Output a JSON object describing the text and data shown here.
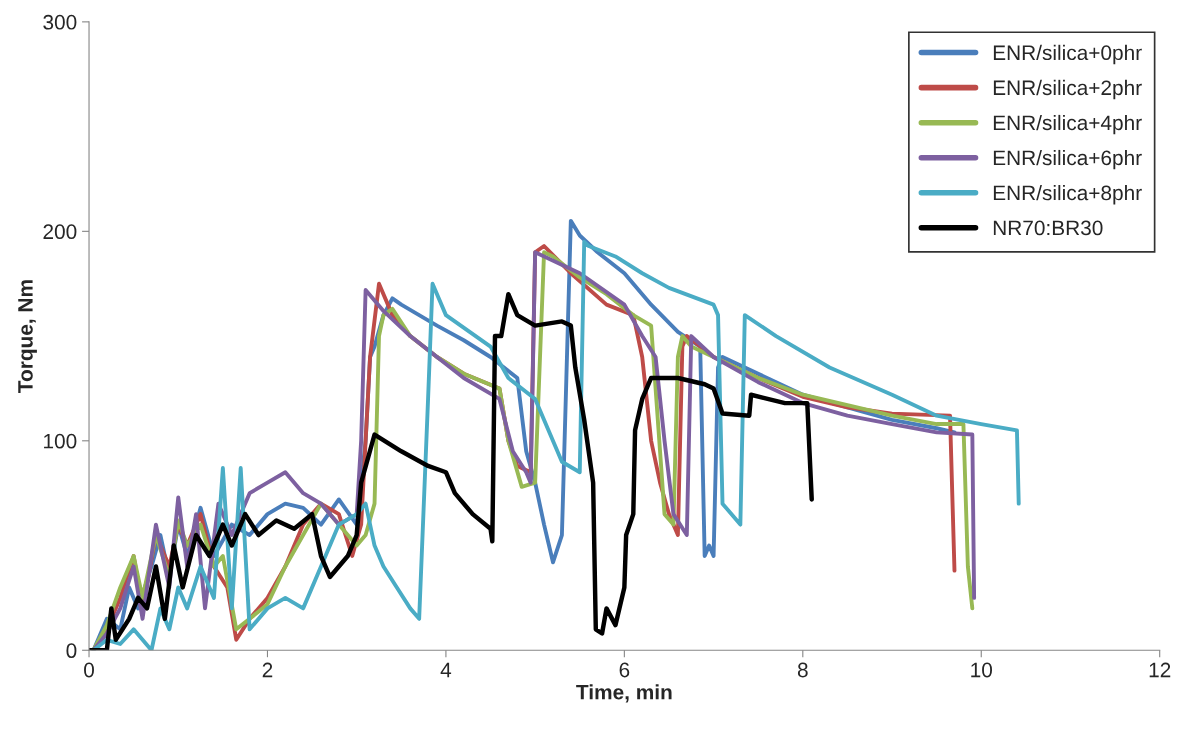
{
  "chart_data": {
    "type": "line",
    "xlabel": "Time, min",
    "ylabel": "Torque, Nm",
    "xlim": [
      0,
      12
    ],
    "ylim": [
      0,
      300
    ],
    "xticks": [
      0,
      2,
      4,
      6,
      8,
      10,
      12
    ],
    "yticks": [
      0,
      100,
      200,
      300
    ],
    "grid": false,
    "legend": "top right",
    "marker": "none",
    "line_style": "solid",
    "series": [
      {
        "name": "ENR/silica+0phr",
        "color": "#4a7ebb",
        "x": [
          0.05,
          0.2,
          0.35,
          0.45,
          0.55,
          0.7,
          0.8,
          0.9,
          1.0,
          1.1,
          1.25,
          1.4,
          1.6,
          1.8,
          2.0,
          2.2,
          2.4,
          2.6,
          2.8,
          3.0,
          3.1,
          3.15,
          3.2,
          3.3,
          3.4,
          3.5,
          3.7,
          3.9,
          4.2,
          4.5,
          4.8,
          4.9,
          5.0,
          5.1,
          5.2,
          5.3,
          5.35,
          5.4,
          5.5,
          5.7,
          6.0,
          6.3,
          6.6,
          6.85,
          6.9,
          6.95,
          7.0,
          7.05,
          7.1,
          7.5,
          8.0,
          8.5,
          9.0,
          9.5,
          9.7
        ],
        "values": [
          0,
          15,
          10,
          30,
          20,
          40,
          55,
          35,
          60,
          45,
          68,
          45,
          60,
          55,
          65,
          70,
          68,
          60,
          72,
          60,
          100,
          140,
          145,
          160,
          168,
          165,
          160,
          155,
          148,
          140,
          130,
          95,
          80,
          60,
          42,
          55,
          130,
          205,
          198,
          190,
          180,
          165,
          152,
          145,
          45,
          50,
          45,
          135,
          140,
          132,
          122,
          116,
          110,
          106,
          104
        ]
      },
      {
        "name": "ENR/silica+2phr",
        "color": "#be4b48",
        "x": [
          0.05,
          0.2,
          0.35,
          0.5,
          0.6,
          0.75,
          0.9,
          1.0,
          1.1,
          1.25,
          1.4,
          1.55,
          1.65,
          1.8,
          2.0,
          2.2,
          2.4,
          2.6,
          2.8,
          2.95,
          3.05,
          3.15,
          3.25,
          3.4,
          3.6,
          3.9,
          4.2,
          4.6,
          4.7,
          4.8,
          4.95,
          5.0,
          5.1,
          5.4,
          5.8,
          6.1,
          6.2,
          6.3,
          6.4,
          6.5,
          6.6,
          6.65,
          6.7,
          7.0,
          7.5,
          8.0,
          8.5,
          9.0,
          9.65,
          9.7
        ],
        "values": [
          0,
          10,
          25,
          45,
          20,
          55,
          40,
          60,
          50,
          65,
          40,
          30,
          5,
          15,
          25,
          40,
          60,
          70,
          65,
          45,
          60,
          140,
          175,
          160,
          150,
          140,
          132,
          125,
          100,
          88,
          85,
          190,
          193,
          180,
          165,
          160,
          140,
          100,
          80,
          65,
          55,
          145,
          150,
          140,
          130,
          121,
          116,
          113,
          112,
          38
        ]
      },
      {
        "name": "ENR/silica+4phr",
        "color": "#98b954",
        "x": [
          0.05,
          0.2,
          0.35,
          0.5,
          0.6,
          0.75,
          0.9,
          1.0,
          1.1,
          1.25,
          1.4,
          1.5,
          1.65,
          1.8,
          2.0,
          2.2,
          2.4,
          2.6,
          2.8,
          3.0,
          3.1,
          3.2,
          3.25,
          3.3,
          3.4,
          3.6,
          3.9,
          4.2,
          4.6,
          4.7,
          4.85,
          5.0,
          5.1,
          5.2,
          5.5,
          5.8,
          6.1,
          6.3,
          6.45,
          6.55,
          6.6,
          6.65,
          6.75,
          7.0,
          7.5,
          8.0,
          8.5,
          9.0,
          9.5,
          9.8,
          9.85,
          9.9
        ],
        "values": [
          0,
          12,
          30,
          45,
          25,
          55,
          35,
          62,
          50,
          60,
          40,
          45,
          10,
          15,
          22,
          40,
          55,
          70,
          60,
          50,
          55,
          70,
          150,
          160,
          163,
          150,
          140,
          132,
          125,
          100,
          78,
          80,
          190,
          188,
          178,
          170,
          160,
          155,
          65,
          60,
          140,
          150,
          145,
          140,
          130,
          122,
          117,
          112,
          108,
          108,
          40,
          20
        ]
      },
      {
        "name": "ENR/silica+6phr",
        "color": "#7d60a0",
        "x": [
          0.05,
          0.2,
          0.35,
          0.5,
          0.6,
          0.75,
          0.9,
          1.0,
          1.1,
          1.2,
          1.3,
          1.45,
          1.6,
          1.8,
          2.0,
          2.2,
          2.4,
          2.6,
          2.8,
          3.0,
          3.05,
          3.1,
          3.3,
          3.6,
          3.9,
          4.2,
          4.6,
          4.75,
          4.9,
          4.95,
          5.0,
          5.5,
          6.0,
          6.2,
          6.35,
          6.45,
          6.55,
          6.7,
          6.75,
          7.0,
          7.5,
          8.0,
          8.5,
          9.0,
          9.5,
          9.9,
          9.92
        ],
        "values": [
          0,
          8,
          20,
          40,
          15,
          60,
          30,
          73,
          40,
          65,
          20,
          70,
          55,
          75,
          80,
          85,
          75,
          70,
          60,
          65,
          100,
          172,
          162,
          150,
          140,
          130,
          120,
          95,
          85,
          80,
          190,
          180,
          165,
          150,
          140,
          100,
          65,
          55,
          150,
          140,
          128,
          118,
          112,
          108,
          104,
          103,
          25
        ]
      },
      {
        "name": "ENR/silica+8phr",
        "color": "#4aacc5",
        "x": [
          0.05,
          0.2,
          0.35,
          0.5,
          0.6,
          0.7,
          0.8,
          0.9,
          1.0,
          1.1,
          1.25,
          1.4,
          1.5,
          1.6,
          1.7,
          1.8,
          2.0,
          2.2,
          2.4,
          2.6,
          2.8,
          3.0,
          3.1,
          3.2,
          3.3,
          3.45,
          3.6,
          3.7,
          3.8,
          3.85,
          4.0,
          4.5,
          4.7,
          5.0,
          5.3,
          5.5,
          5.55,
          5.6,
          5.9,
          6.2,
          6.5,
          7.0,
          7.05,
          7.1,
          7.3,
          7.35,
          7.7,
          8.3,
          9.0,
          9.5,
          10.0,
          10.4,
          10.42
        ],
        "values": [
          0,
          5,
          3,
          10,
          5,
          0,
          20,
          10,
          30,
          20,
          40,
          25,
          87,
          20,
          87,
          10,
          20,
          25,
          20,
          40,
          60,
          65,
          70,
          50,
          40,
          30,
          20,
          15,
          120,
          175,
          160,
          145,
          130,
          120,
          90,
          85,
          195,
          193,
          188,
          180,
          173,
          165,
          160,
          70,
          60,
          160,
          150,
          135,
          122,
          112,
          108,
          105,
          70
        ]
      },
      {
        "name": "NR70:BR30",
        "color": "#000000",
        "x": [
          0.0,
          0.2,
          0.25,
          0.3,
          0.45,
          0.55,
          0.65,
          0.75,
          0.85,
          0.95,
          1.05,
          1.2,
          1.35,
          1.5,
          1.6,
          1.75,
          1.9,
          2.1,
          2.3,
          2.5,
          2.6,
          2.7,
          2.9,
          3.0,
          3.05,
          3.2,
          3.5,
          3.8,
          4.0,
          4.1,
          4.3,
          4.5,
          4.52,
          4.55,
          4.62,
          4.7,
          4.8,
          5.0,
          5.3,
          5.4,
          5.45,
          5.55,
          5.65,
          5.68,
          5.75,
          5.8,
          5.9,
          6.0,
          6.02,
          6.1,
          6.12,
          6.2,
          6.3,
          6.6,
          6.9,
          7.0,
          7.1,
          7.4,
          7.42,
          7.8,
          8.05,
          8.1
        ],
        "values": [
          0,
          0,
          20,
          5,
          15,
          25,
          20,
          40,
          15,
          50,
          30,
          55,
          45,
          60,
          50,
          65,
          55,
          62,
          58,
          65,
          45,
          35,
          45,
          55,
          80,
          103,
          95,
          88,
          85,
          75,
          65,
          58,
          52,
          150,
          150,
          170,
          160,
          155,
          157,
          155,
          135,
          110,
          80,
          10,
          8,
          20,
          12,
          30,
          55,
          65,
          105,
          120,
          130,
          130,
          127,
          125,
          113,
          112,
          122,
          118,
          118,
          72
        ]
      }
    ]
  }
}
